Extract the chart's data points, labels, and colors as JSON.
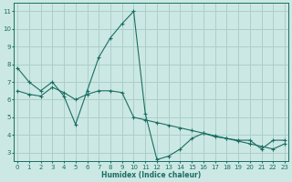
{
  "xlabel": "Humidex (Indice chaleur)",
  "bg_color": "#cce8e4",
  "grid_color": "#aacfca",
  "line_color": "#1a6e62",
  "series1_x": [
    0,
    1,
    2,
    3,
    4,
    5,
    6,
    7,
    8,
    9,
    10,
    11,
    12,
    13,
    14,
    15,
    16,
    17,
    18,
    19,
    20,
    21,
    22,
    23
  ],
  "series1_y": [
    7.8,
    7.0,
    6.5,
    7.0,
    6.2,
    4.6,
    6.5,
    8.4,
    9.5,
    10.3,
    11.0,
    5.2,
    2.6,
    2.8,
    3.2,
    3.8,
    4.1,
    3.9,
    3.8,
    3.7,
    3.7,
    3.2,
    3.7,
    3.7
  ],
  "series2_x": [
    0,
    1,
    2,
    3,
    4,
    5,
    6,
    7,
    8,
    9,
    10,
    11,
    12,
    13,
    14,
    15,
    16,
    17,
    18,
    19,
    20,
    21,
    22,
    23
  ],
  "series2_y": [
    6.5,
    6.3,
    6.2,
    6.7,
    6.4,
    6.0,
    6.3,
    6.5,
    6.5,
    6.4,
    5.0,
    4.85,
    4.7,
    4.55,
    4.4,
    4.25,
    4.1,
    3.95,
    3.8,
    3.65,
    3.5,
    3.35,
    3.2,
    3.5
  ],
  "xlim": [
    -0.3,
    23.3
  ],
  "ylim": [
    2.5,
    11.5
  ],
  "yticks": [
    3,
    4,
    5,
    6,
    7,
    8,
    9,
    10,
    11
  ],
  "xticks": [
    0,
    1,
    2,
    3,
    4,
    5,
    6,
    7,
    8,
    9,
    10,
    11,
    12,
    13,
    14,
    15,
    16,
    17,
    18,
    19,
    20,
    21,
    22,
    23
  ]
}
